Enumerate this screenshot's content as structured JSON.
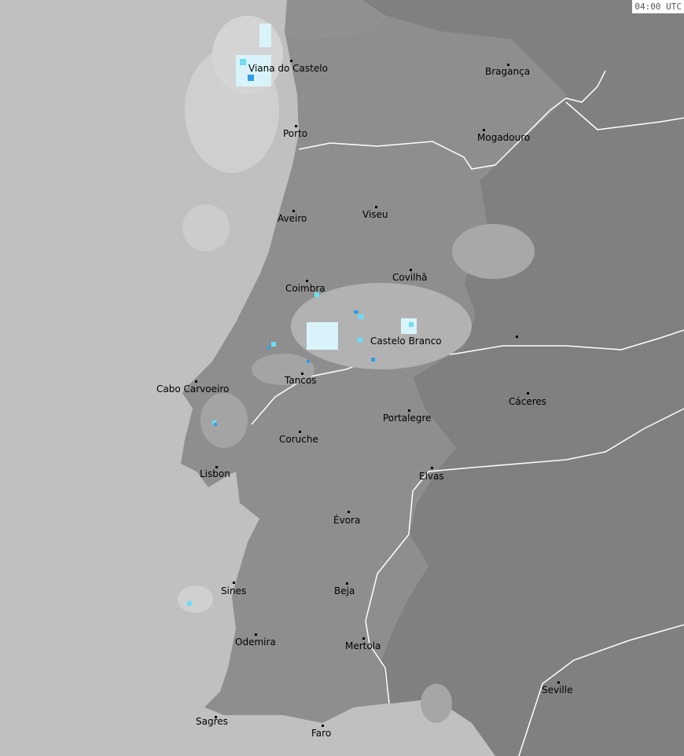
{
  "timestamp": "04:00 UTC",
  "colors": {
    "sea": "#c0c0c0",
    "portugal": "#8e8e8e",
    "spain": "#808080",
    "border": "#ffffff",
    "radar_light": "#b4b4b4",
    "radar_pale": "#d8f4fa",
    "radar_cyan": "#6fdcf2",
    "radar_blue": "#2e9ee8"
  },
  "cities": [
    {
      "name": "Viana do Castelo"
    },
    {
      "name": "Bragança"
    },
    {
      "name": "Porto"
    },
    {
      "name": "Mogadouro"
    },
    {
      "name": "Aveiro"
    },
    {
      "name": "Viseu"
    },
    {
      "name": "Coimbra"
    },
    {
      "name": "Covilhã"
    },
    {
      "name": "Castelo Branco"
    },
    {
      "name": "Tancos"
    },
    {
      "name": "Cabo Carvoeiro"
    },
    {
      "name": "Cáceres"
    },
    {
      "name": "Portalegre"
    },
    {
      "name": "Coruche"
    },
    {
      "name": "Lisbon"
    },
    {
      "name": "Elvas"
    },
    {
      "name": "Évora"
    },
    {
      "name": "Sines"
    },
    {
      "name": "Beja"
    },
    {
      "name": "Odemira"
    },
    {
      "name": "Mertola"
    },
    {
      "name": "Seville"
    },
    {
      "name": "Sagres"
    },
    {
      "name": "Faro"
    }
  ]
}
